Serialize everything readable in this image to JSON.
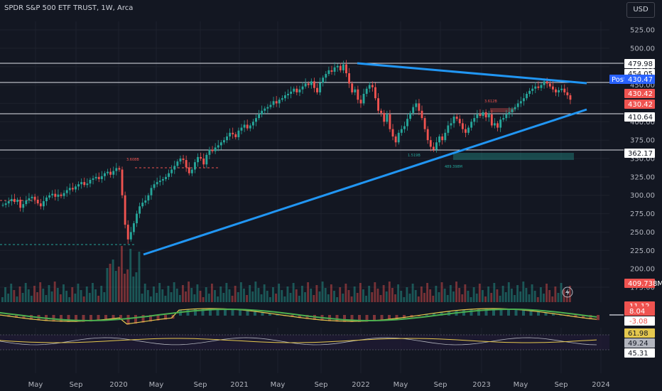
{
  "header": {
    "title": "SPDR S&P 500 ETF TRUST, 1W, Arca",
    "currency": "USD"
  },
  "chart_data": [
    {
      "type": "candlestick",
      "title": "SPDR S&P 500 ETF TRUST, 1W, Arca",
      "price_axis": {
        "ticks": [
          "175.00",
          "200.00",
          "225.00",
          "250.00",
          "275.00",
          "300.00",
          "325.00",
          "350.00",
          "375.00",
          "400.00",
          "425.00",
          "450.00",
          "475.00",
          "500.00",
          "525.00"
        ],
        "ylim": [
          160,
          540
        ]
      },
      "time_axis": {
        "ticks": [
          "May",
          "Sep",
          "2020",
          "May",
          "Sep",
          "2021",
          "May",
          "Sep",
          "2022",
          "May",
          "Sep",
          "2023",
          "May",
          "Sep",
          "2024"
        ]
      },
      "horizontal_levels": [
        479.98,
        430.42,
        410.64,
        362.17
      ],
      "price_labels": [
        {
          "text": "479.98",
          "color": "#ffffff",
          "text_color": "#131722"
        },
        {
          "text": "454.05",
          "color": "#ffffff",
          "text_color": "#131722"
        },
        {
          "text": "430.42",
          "color": "#ef5350",
          "text_color": "#ffffff"
        },
        {
          "text": "430.42",
          "color": "#ef5350",
          "text_color": "#ffffff"
        },
        {
          "text": "410.64",
          "color": "#ffffff",
          "text_color": "#131722"
        },
        {
          "text": "362.17",
          "color": "#ffffff",
          "text_color": "#131722"
        },
        {
          "text": "409.738M",
          "color": "#ef5350",
          "text_color": "#ffffff"
        }
      ],
      "post_marker": {
        "label": "Post",
        "value": "430.47",
        "color": "#2962ff"
      },
      "trendlines": [
        {
          "from": [
            "2022-01",
            "479.98"
          ],
          "to": [
            "2023-12",
            "~454"
          ],
          "color": "#2196f3"
        },
        {
          "from": [
            "2020-03",
            "~220"
          ],
          "to": [
            "2023-12",
            "~412"
          ],
          "color": "#2196f3"
        }
      ],
      "annotations": [
        "3.608B",
        "3.612B",
        "1.519B",
        "489.398M"
      ],
      "candles_weekly_close": [
        287,
        289,
        292,
        295,
        291,
        294,
        283,
        288,
        293,
        296,
        298,
        294,
        289,
        285,
        292,
        297,
        300,
        302,
        298,
        301,
        299,
        303,
        307,
        310,
        308,
        312,
        315,
        318,
        314,
        316,
        321,
        323,
        325,
        322,
        326,
        330,
        332,
        328,
        333,
        337,
        335,
        300,
        260,
        240,
        250,
        262,
        275,
        285,
        290,
        293,
        300,
        310,
        315,
        318,
        320,
        322,
        325,
        330,
        335,
        340,
        346,
        350,
        348,
        338,
        330,
        335,
        345,
        352,
        350,
        342,
        355,
        362,
        360,
        365,
        368,
        372,
        375,
        380,
        385,
        383,
        379,
        388,
        392,
        396,
        391,
        395,
        400,
        405,
        410,
        415,
        418,
        420,
        423,
        428,
        425,
        430,
        432,
        436,
        438,
        441,
        445,
        440,
        444,
        448,
        452,
        450,
        455,
        446,
        440,
        453,
        460,
        465,
        470,
        468,
        474,
        476,
        470,
        478,
        466,
        452,
        440,
        444,
        430,
        425,
        438,
        445,
        450,
        447,
        432,
        415,
        412,
        400,
        410,
        390,
        380,
        372,
        385,
        390,
        394,
        404,
        412,
        420,
        425,
        415,
        405,
        390,
        375,
        366,
        362,
        372,
        380,
        375,
        385,
        395,
        398,
        407,
        404,
        398,
        390,
        385,
        392,
        400,
        405,
        410,
        408,
        413,
        406,
        410,
        395,
        398,
        392,
        403,
        405,
        410,
        413,
        417,
        420,
        425,
        428,
        432,
        438,
        442,
        445,
        448,
        446,
        450,
        455,
        452,
        448,
        444,
        440,
        443,
        445,
        440,
        436,
        430
      ]
    },
    {
      "type": "bar",
      "title": "Volume",
      "last_value": "409.738M"
    },
    {
      "type": "line",
      "title": "MACD",
      "labels": [
        "11.12",
        "8.04",
        "-3.08"
      ]
    },
    {
      "type": "line",
      "title": "RSI",
      "labels": [
        "61.98",
        "49.24",
        "45.31"
      ]
    }
  ]
}
